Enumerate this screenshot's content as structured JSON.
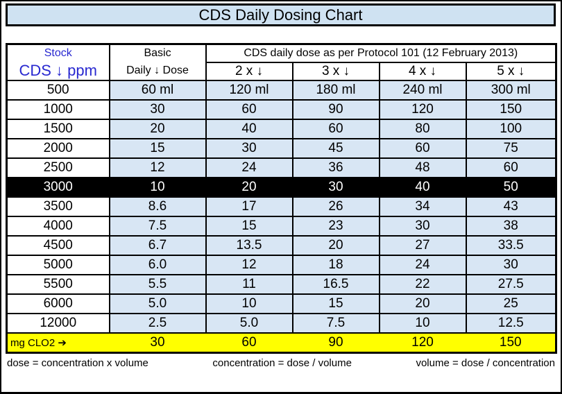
{
  "title": "CDS Daily Dosing Chart",
  "header": {
    "stock_line1": "Stock",
    "stock_line2": "CDS ↓ ppm",
    "basic_line1": "Basic",
    "basic_line2": "Daily ↓ Dose",
    "protocol": "CDS daily dose as per Protocol 101 (12 February 2013)"
  },
  "chart_data": {
    "type": "table",
    "title": "CDS Daily Dosing Chart",
    "columns": [
      "Stock CDS ↓ ppm",
      "Basic Daily ↓ Dose",
      "2 x ↓",
      "3 x ↓",
      "4 x ↓",
      "5 x ↓"
    ],
    "rows": [
      [
        "500",
        "60 ml",
        "120 ml",
        "180 ml",
        "240 ml",
        "300 ml"
      ],
      [
        "1000",
        "30",
        "60",
        "90",
        "120",
        "150"
      ],
      [
        "1500",
        "20",
        "40",
        "60",
        "80",
        "100"
      ],
      [
        "2000",
        "15",
        "30",
        "45",
        "60",
        "75"
      ],
      [
        "2500",
        "12",
        "24",
        "36",
        "48",
        "60"
      ],
      [
        "3000",
        "10",
        "20",
        "30",
        "40",
        "50"
      ],
      [
        "3500",
        "8.6",
        "17",
        "26",
        "34",
        "43"
      ],
      [
        "4000",
        "7.5",
        "15",
        "23",
        "30",
        "38"
      ],
      [
        "4500",
        "6.7",
        "13.5",
        "20",
        "27",
        "33.5"
      ],
      [
        "5000",
        "6.0",
        "12",
        "18",
        "24",
        "30"
      ],
      [
        "5500",
        "5.5",
        "11",
        "16.5",
        "22",
        "27.5"
      ],
      [
        "6000",
        "5.0",
        "10",
        "15",
        "20",
        "25"
      ],
      [
        "12000",
        "2.5",
        "5.0",
        "7.5",
        "10",
        "12.5"
      ]
    ],
    "highlighted_row": "3000",
    "mg_clo2_row": {
      "label": "mg CLO2 ➔",
      "values": [
        "30",
        "60",
        "90",
        "120",
        "150"
      ]
    }
  },
  "footer": {
    "formula1": "dose = concentration x volume",
    "formula2": "concentration = dose / volume",
    "formula3": "volume = dose / concentration"
  },
  "colors": {
    "cell_blue": "#d8e6f4",
    "title_blue": "#cfe2f2",
    "header_text_blue": "#2828d0",
    "mg_row_yellow": "#ffff00",
    "highlight_black": "#000000"
  }
}
